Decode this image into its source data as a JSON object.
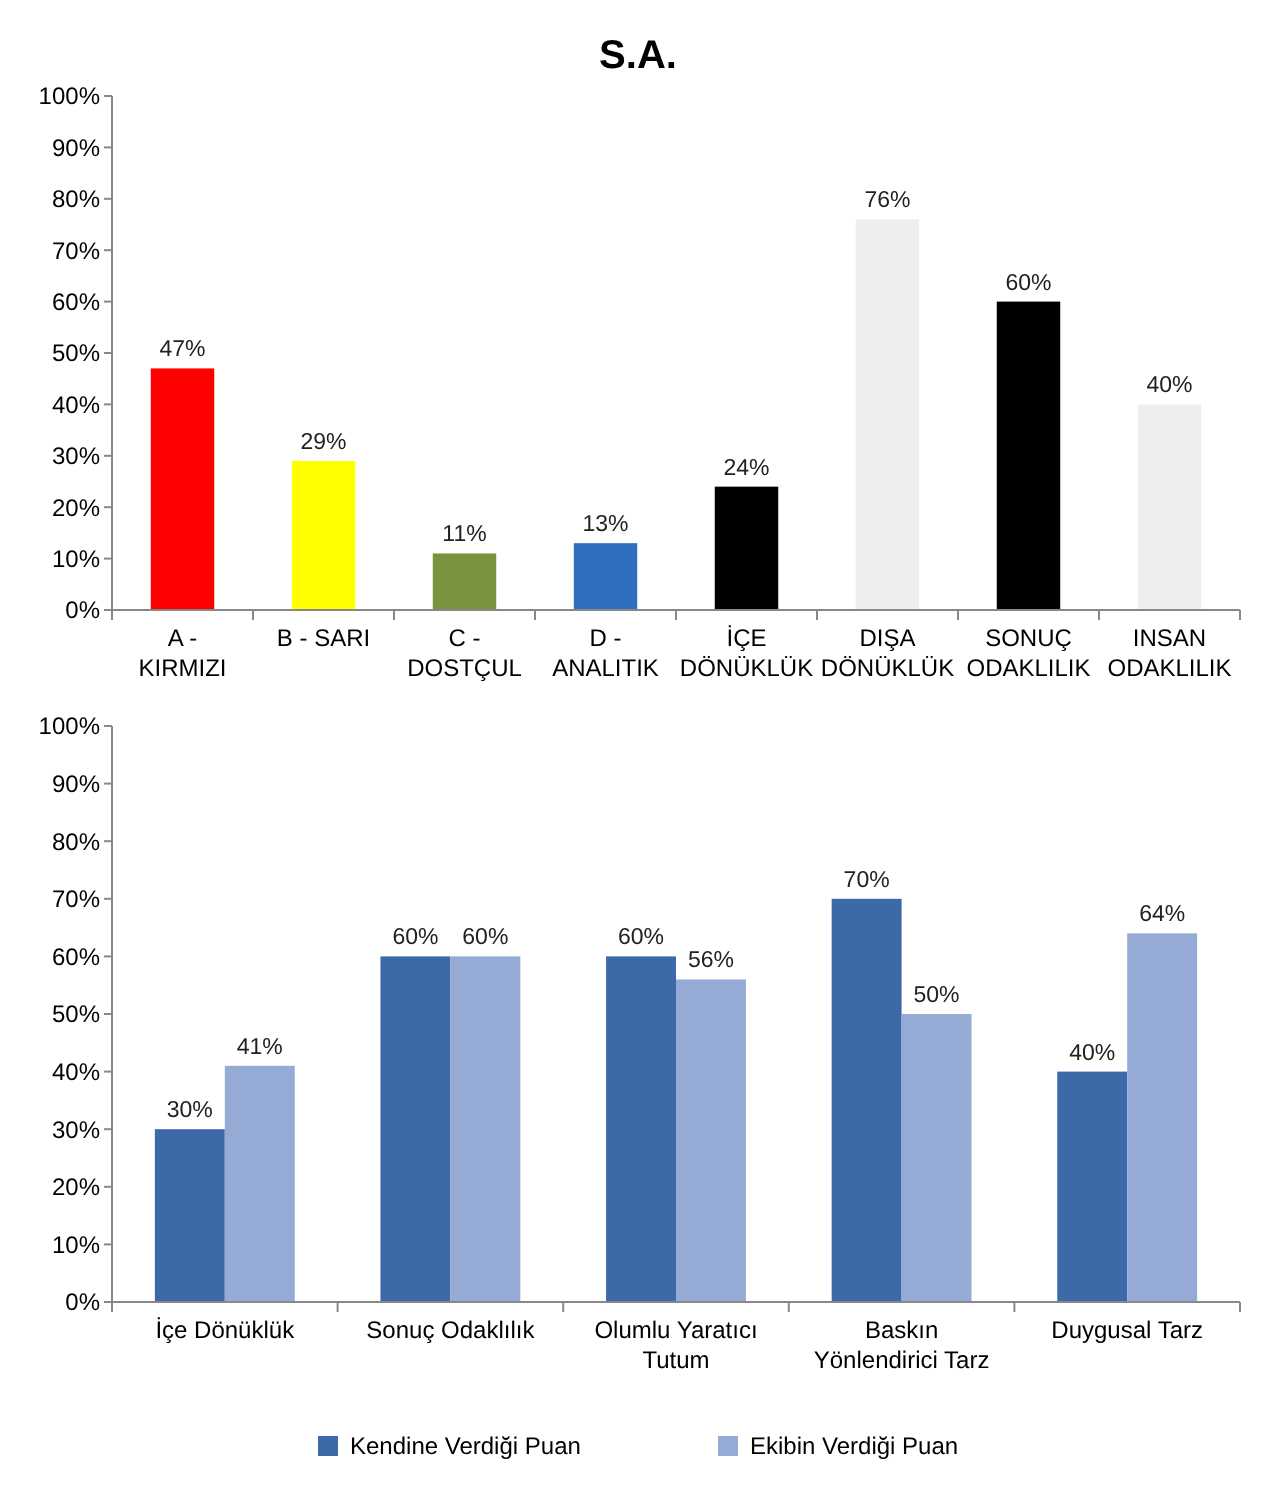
{
  "chart_data": [
    {
      "type": "bar",
      "title": "S.A.",
      "categories": [
        "A - KIRMIZI",
        "B - SARI",
        "C - DOSTÇUL",
        "D - ANALITIK",
        "İÇE DÖNÜKLÜK",
        "DIŞA DÖNÜKLÜK",
        "SONUÇ ODAKLILIK",
        "INSAN ODAKLILIK"
      ],
      "values": [
        47,
        29,
        11,
        13,
        24,
        76,
        60,
        40
      ],
      "colors": [
        "#ff0000",
        "#ffff00",
        "#77933c",
        "#2e6fbf",
        "#000000",
        "#eeeeee",
        "#000000",
        "#eeeeee"
      ],
      "value_labels": [
        "47%",
        "29%",
        "11%",
        "13%",
        "24%",
        "76%",
        "60%",
        "40%"
      ],
      "ylim": [
        0,
        100
      ],
      "yticks": [
        {
          "value": 0,
          "label": "0%"
        },
        {
          "value": 10,
          "label": "10%"
        },
        {
          "value": 20,
          "label": "20%"
        },
        {
          "value": 30,
          "label": "30%"
        },
        {
          "value": 40,
          "label": "40%"
        },
        {
          "value": 50,
          "label": "50%"
        },
        {
          "value": 60,
          "label": "60%"
        },
        {
          "value": 70,
          "label": "70%"
        },
        {
          "value": 80,
          "label": "80%"
        },
        {
          "value": 90,
          "label": "90%"
        },
        {
          "value": 100,
          "label": "100%"
        }
      ]
    },
    {
      "type": "bar",
      "categories": [
        "İçe Dönüklük",
        "Sonuç Odaklılık",
        "Olumlu Yaratıcı Tutum",
        "Baskın Yönlendirici Tarz",
        "Duygusal Tarz"
      ],
      "series": [
        {
          "name": "Kendine Verdiği Puan",
          "color": "#3d69a8",
          "values": [
            30,
            60,
            60,
            70,
            40
          ],
          "value_labels": [
            "30%",
            "60%",
            "60%",
            "70%",
            "40%"
          ]
        },
        {
          "name": "Ekibin Verdiği Puan",
          "color": "#95abd5",
          "values": [
            41,
            60,
            56,
            50,
            64
          ],
          "value_labels": [
            "41%",
            "60%",
            "56%",
            "50%",
            "64%"
          ]
        }
      ],
      "legend": "bottom",
      "ylim": [
        0,
        100
      ],
      "yticks": [
        {
          "value": 0,
          "label": "0%"
        },
        {
          "value": 10,
          "label": "10%"
        },
        {
          "value": 20,
          "label": "20%"
        },
        {
          "value": 30,
          "label": "30%"
        },
        {
          "value": 40,
          "label": "40%"
        },
        {
          "value": 50,
          "label": "50%"
        },
        {
          "value": 60,
          "label": "60%"
        },
        {
          "value": 70,
          "label": "70%"
        },
        {
          "value": 80,
          "label": "80%"
        },
        {
          "value": 90,
          "label": "90%"
        },
        {
          "value": 100,
          "label": "100%"
        }
      ]
    }
  ]
}
